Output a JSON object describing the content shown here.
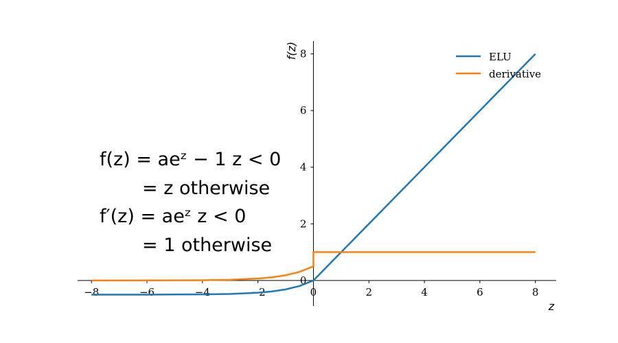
{
  "chart_data": {
    "type": "line",
    "xlabel": "z",
    "ylabel": "f(z)",
    "xlim": [
      -8.5,
      8.75
    ],
    "ylim": [
      -0.9,
      8.45
    ],
    "x_ticks": [
      -8,
      -6,
      -4,
      -2,
      0,
      2,
      4,
      6,
      8
    ],
    "x_tick_labels": [
      "−8",
      "−6",
      "−4",
      "−2",
      "0",
      "2",
      "4",
      "6",
      "8"
    ],
    "y_ticks": [
      0,
      2,
      4,
      6,
      8
    ],
    "y_tick_labels": [
      "0",
      "2",
      "4",
      "6",
      "8"
    ],
    "grid": false,
    "legend_position": "top-right",
    "alpha": 0.5,
    "x_domain": [
      -8,
      8
    ],
    "series": [
      {
        "name": "ELU",
        "color": "#1f77b4",
        "points": [
          [
            -8,
            -0.4998
          ],
          [
            -6,
            -0.4988
          ],
          [
            -4,
            -0.4908
          ],
          [
            -3,
            -0.4751
          ],
          [
            -2,
            -0.4323
          ],
          [
            -1.5,
            -0.3884
          ],
          [
            -1,
            -0.3161
          ],
          [
            -0.5,
            -0.1967
          ],
          [
            0,
            0
          ],
          [
            8,
            8
          ]
        ]
      },
      {
        "name": "derivative",
        "color": "#ff7f0e",
        "points": [
          [
            -8,
            0.0002
          ],
          [
            -6,
            0.0012
          ],
          [
            -4,
            0.0092
          ],
          [
            -3,
            0.0249
          ],
          [
            -2,
            0.0677
          ],
          [
            -1.5,
            0.1116
          ],
          [
            -1,
            0.1839
          ],
          [
            -0.5,
            0.3033
          ],
          [
            0,
            0.5
          ],
          [
            0,
            1
          ],
          [
            8,
            1
          ]
        ]
      }
    ],
    "equations": [
      "f(z) = aeᶻ − 1   z < 0",
      "= z   otherwise",
      "f′(z) = aeᶻ   z < 0",
      "= 1   otherwise"
    ]
  }
}
